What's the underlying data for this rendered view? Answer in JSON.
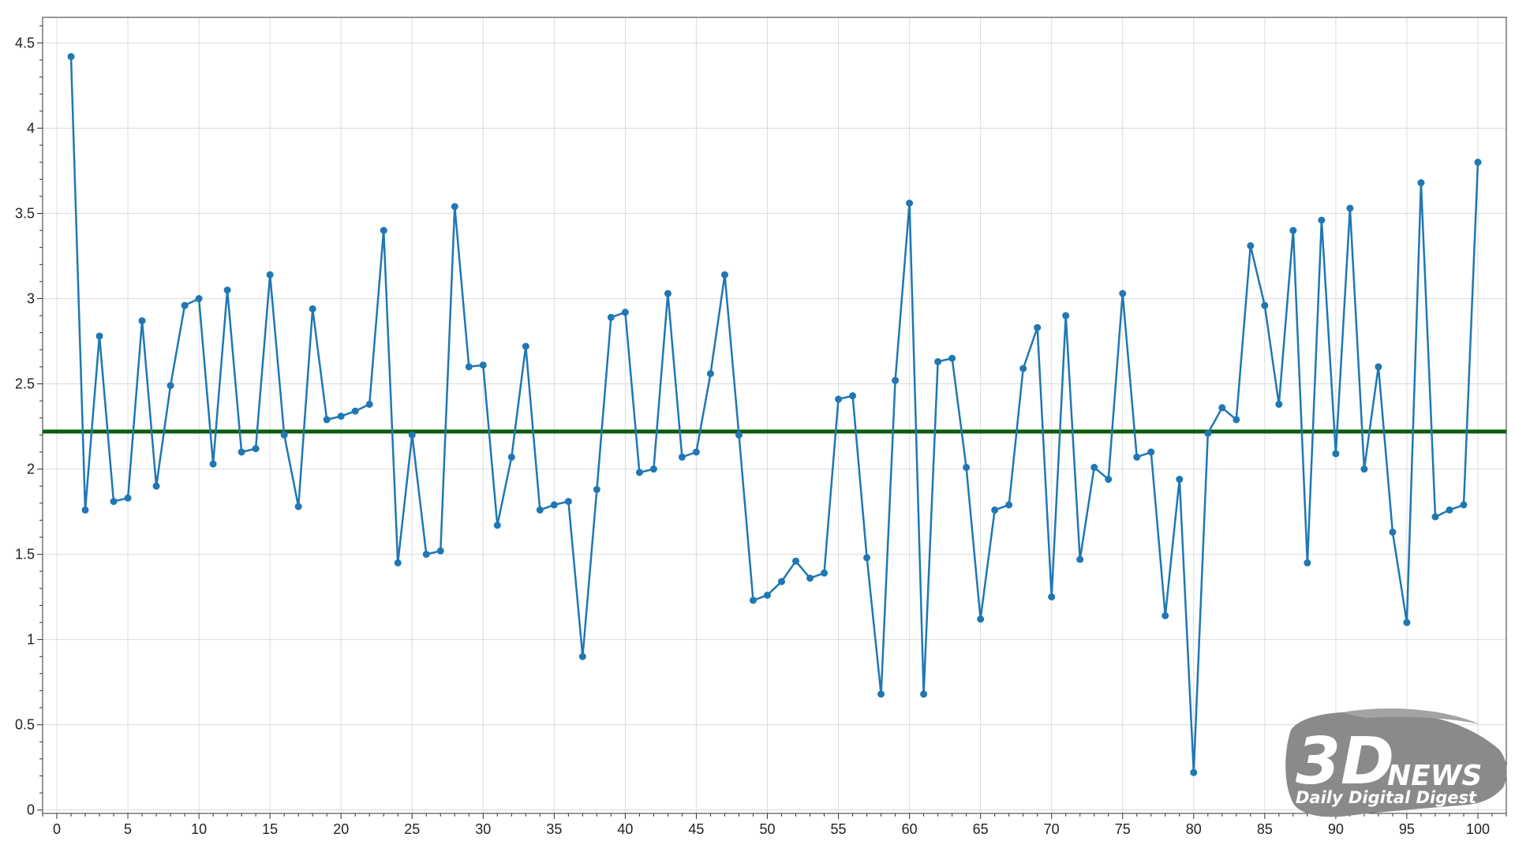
{
  "chart_data": {
    "type": "line",
    "title": "",
    "xlabel": "",
    "ylabel": "",
    "xlim": [
      -1,
      102
    ],
    "ylim": [
      -0.02,
      4.65
    ],
    "x_ticks": [
      0,
      5,
      10,
      15,
      20,
      25,
      30,
      35,
      40,
      45,
      50,
      55,
      60,
      65,
      70,
      75,
      80,
      85,
      90,
      95,
      100
    ],
    "x_tick_labels": [
      "0",
      "5",
      "10",
      "15",
      "20",
      "25",
      "30",
      "35",
      "40",
      "45",
      "50",
      "55",
      "60",
      "65",
      "70",
      "75",
      "80",
      "85",
      "90",
      "95",
      "100"
    ],
    "y_ticks": [
      0,
      0.5,
      1,
      1.5,
      2,
      2.5,
      3,
      3.5,
      4,
      4.5
    ],
    "y_tick_labels": [
      "0",
      "0.5",
      "1",
      "1.5",
      "2",
      "2.5",
      "3",
      "3.5",
      "4",
      "4.5"
    ],
    "grid": true,
    "legend": "none",
    "series": [
      {
        "color": "#1f77b4",
        "marker": "circle",
        "x": [
          1,
          2,
          3,
          4,
          5,
          6,
          7,
          8,
          9,
          10,
          11,
          12,
          13,
          14,
          15,
          16,
          17,
          18,
          19,
          20,
          21,
          22,
          23,
          24,
          25,
          26,
          27,
          28,
          29,
          30,
          31,
          32,
          33,
          34,
          35,
          36,
          37,
          38,
          39,
          40,
          41,
          42,
          43,
          44,
          45,
          46,
          47,
          48,
          49,
          50,
          51,
          52,
          53,
          54,
          55,
          56,
          57,
          58,
          59,
          60,
          61,
          62,
          63,
          64,
          65,
          66,
          67,
          68,
          69,
          70,
          71,
          72,
          73,
          74,
          75,
          76,
          77,
          78,
          79,
          80,
          81,
          82,
          83,
          84,
          85,
          86,
          87,
          88,
          89,
          90,
          91,
          92,
          93,
          94,
          95,
          96,
          97,
          98,
          99,
          100
        ],
        "values": [
          4.42,
          1.76,
          2.78,
          1.81,
          1.83,
          2.87,
          1.9,
          2.49,
          2.96,
          3.0,
          2.03,
          3.05,
          2.1,
          2.12,
          3.14,
          2.2,
          1.78,
          2.94,
          2.29,
          2.31,
          2.34,
          2.38,
          3.4,
          1.45,
          2.2,
          1.5,
          1.52,
          3.54,
          2.6,
          2.61,
          1.67,
          2.07,
          2.72,
          1.76,
          1.79,
          1.81,
          0.9,
          1.88,
          2.89,
          2.92,
          1.98,
          2.0,
          3.03,
          2.07,
          2.1,
          2.56,
          3.14,
          2.2,
          1.23,
          1.26,
          1.34,
          1.46,
          1.36,
          1.39,
          2.41,
          2.43,
          1.48,
          0.68,
          2.52,
          3.56,
          0.68,
          2.63,
          2.65,
          2.01,
          1.12,
          1.76,
          1.79,
          2.59,
          2.83,
          1.25,
          2.9,
          1.47,
          2.01,
          1.94,
          3.03,
          2.07,
          2.1,
          1.14,
          1.94,
          0.22,
          2.21,
          2.36,
          2.29,
          3.31,
          2.96,
          2.38,
          3.4,
          1.45,
          3.46,
          2.09,
          3.53,
          2.0,
          2.6,
          1.63,
          1.1,
          3.68,
          1.72,
          1.76,
          1.79,
          3.8
        ]
      }
    ],
    "reference_line": {
      "orientation": "horizontal",
      "y": 2.22,
      "color": "#0b5d0b"
    }
  },
  "watermark": {
    "brand": "3DNEWS",
    "brand_3d": "3D",
    "brand_news": "NEWS",
    "tagline": "Daily Digital Digest",
    "color": "#8a8a8a"
  }
}
